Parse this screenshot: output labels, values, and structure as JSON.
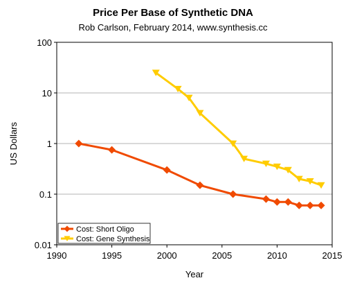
{
  "chart_data": {
    "type": "line",
    "title": "Price Per Base of Synthetic DNA",
    "subtitle": "Rob Carlson, February 2014, www.synthesis.cc",
    "xlabel": "Year",
    "ylabel": "US Dollars",
    "xlim": [
      1990,
      2015
    ],
    "ylim": [
      0.01,
      100
    ],
    "yscale": "log",
    "grid": "horizontal major gridlines",
    "legend_position": "bottom-left",
    "x_ticks": [
      "1990",
      "1995",
      "2000",
      "2005",
      "2010",
      "2015"
    ],
    "y_ticks": [
      "100",
      "10",
      "1",
      "0.1",
      "0.01"
    ],
    "series": [
      {
        "name": "Cost: Short Oligo",
        "color": "#f04a00",
        "marker": "diamond",
        "x": [
          1992,
          1995,
          2000,
          2003,
          2006,
          2009,
          2010,
          2011,
          2012,
          2013,
          2014
        ],
        "y": [
          1.0,
          0.75,
          0.3,
          0.15,
          0.1,
          0.08,
          0.07,
          0.07,
          0.06,
          0.06,
          0.06
        ]
      },
      {
        "name": "Cost: Gene Synthesis",
        "color": "#ffcc00",
        "marker": "triangle-down",
        "x": [
          1999,
          2001,
          2002,
          2003,
          2006,
          2007,
          2009,
          2010,
          2011,
          2012,
          2013,
          2014
        ],
        "y": [
          25,
          12,
          8,
          4,
          1.0,
          0.5,
          0.4,
          0.35,
          0.3,
          0.2,
          0.18,
          0.15
        ]
      }
    ]
  }
}
